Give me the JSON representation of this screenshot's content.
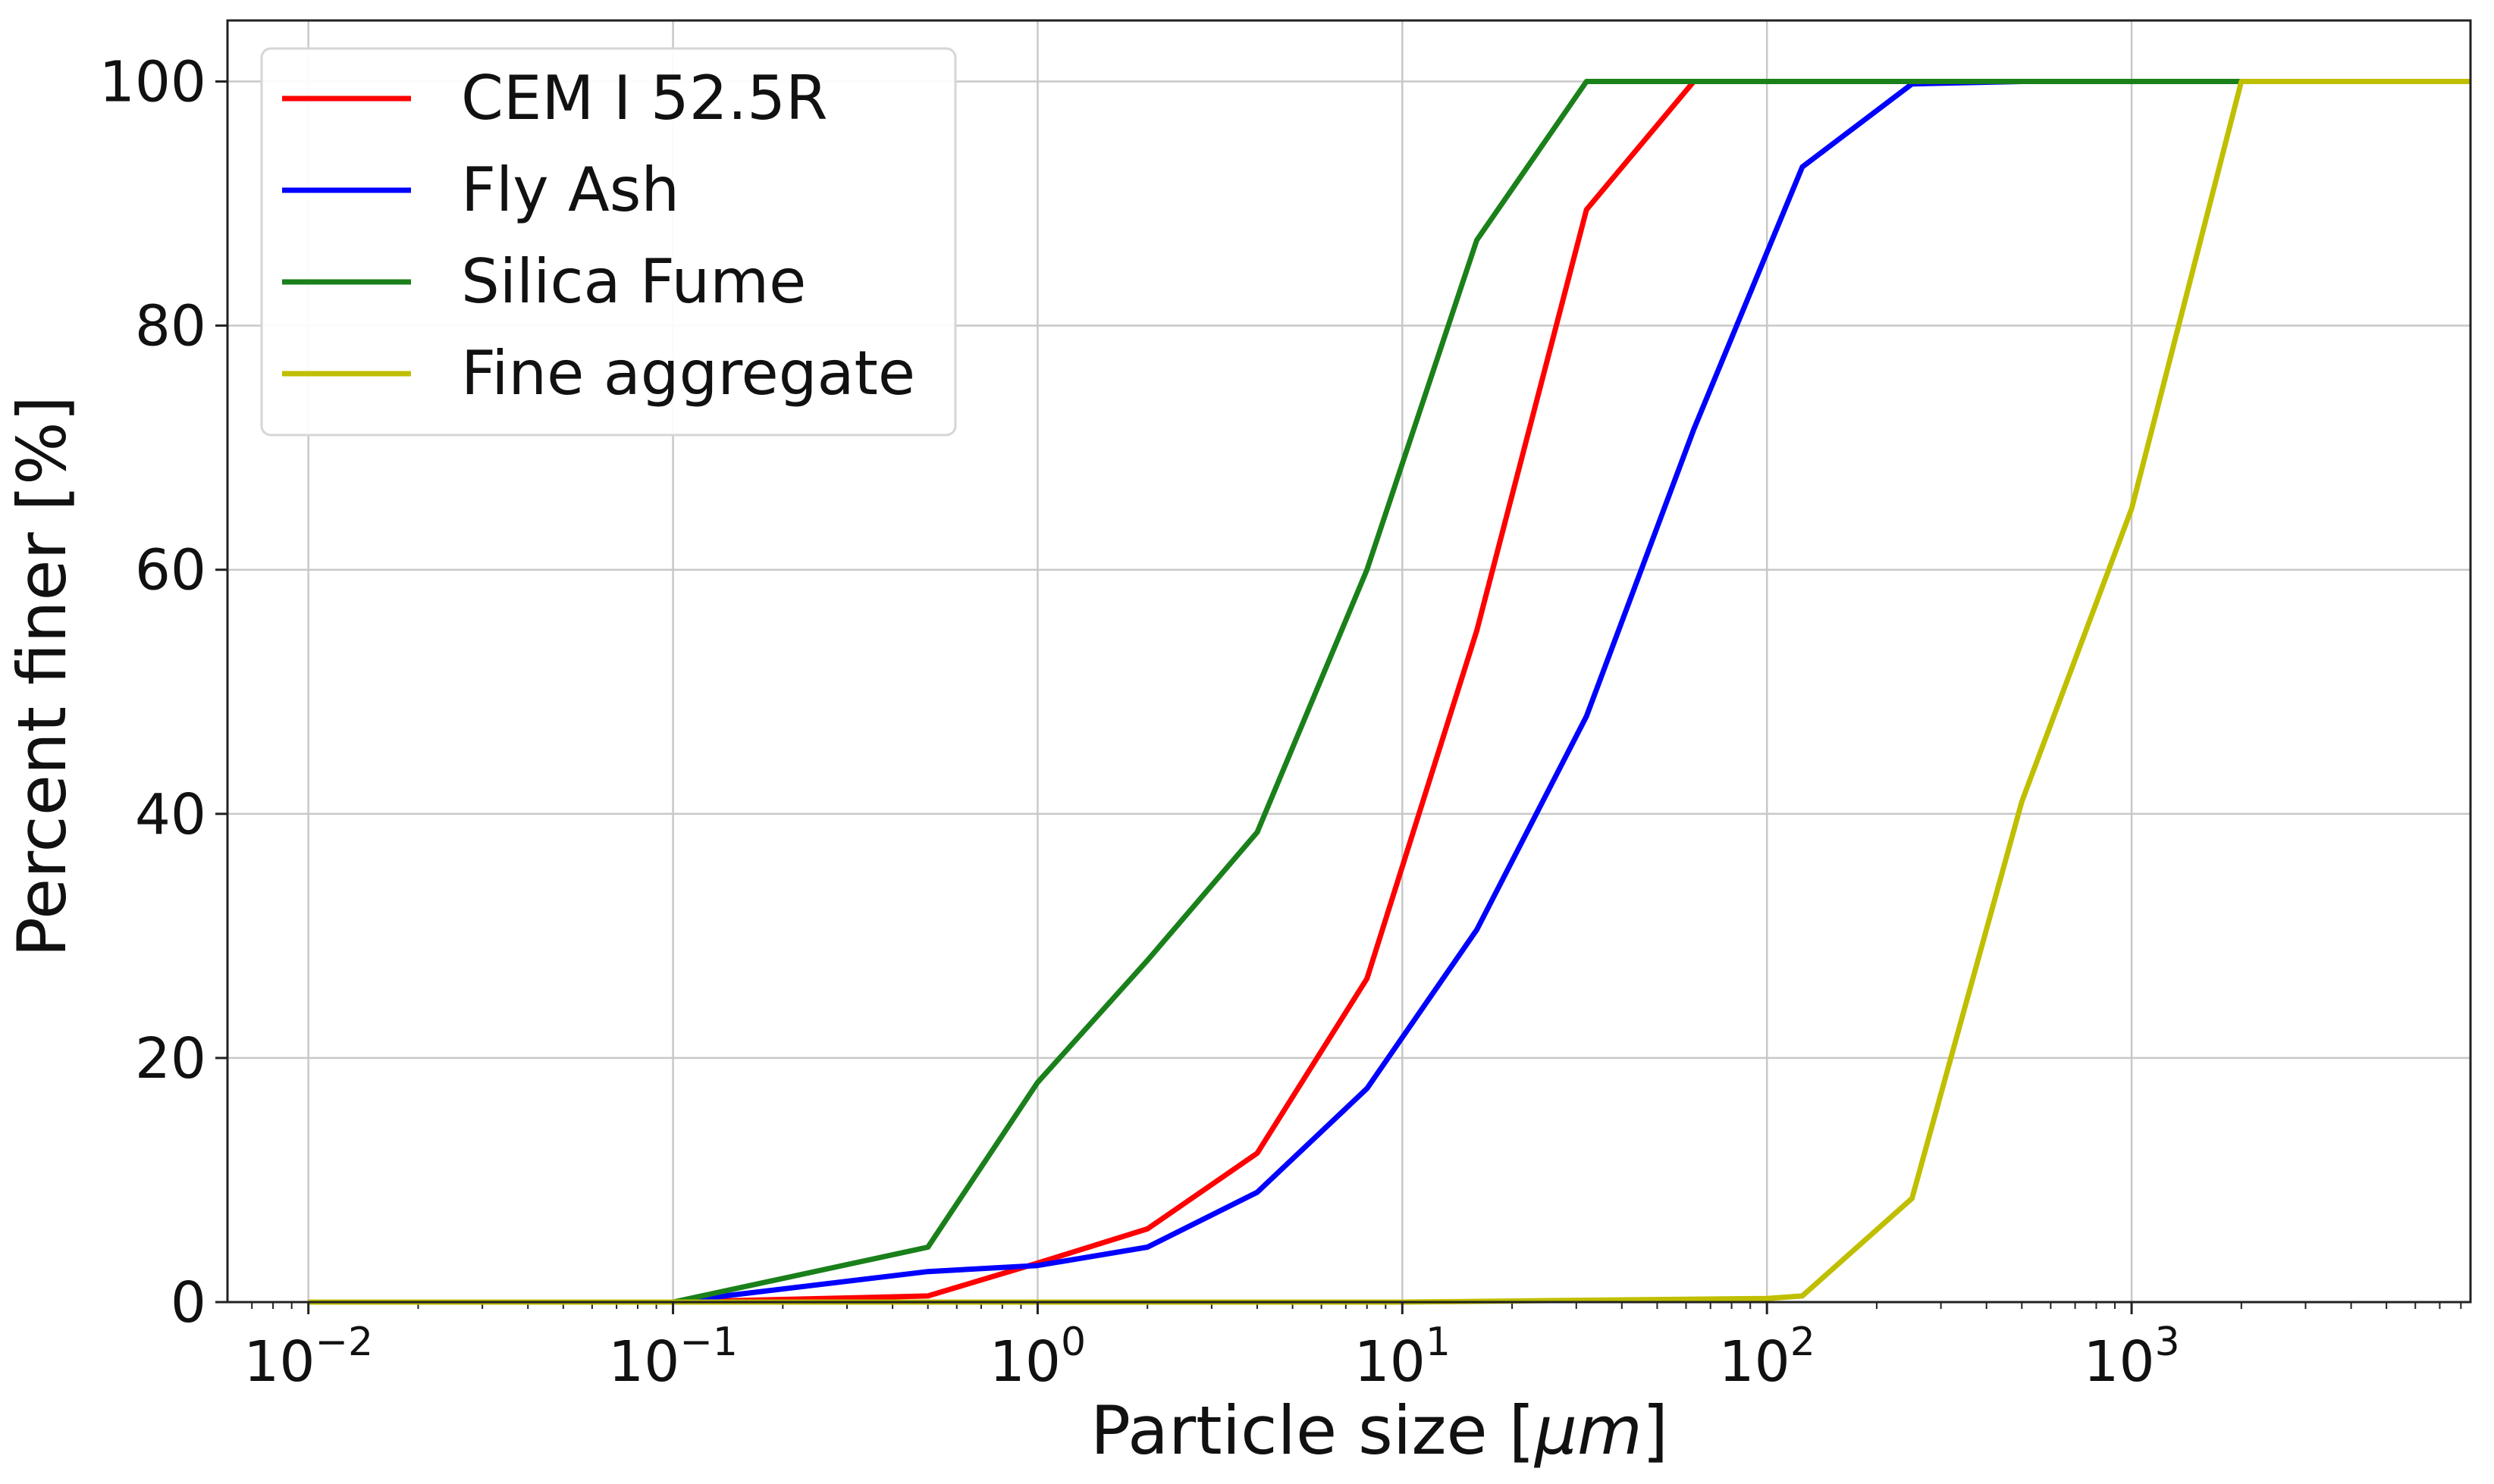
{
  "chart_data": {
    "type": "line",
    "title": "",
    "xlabel": "Particle size [μm]",
    "ylabel": "Percent finer [%]",
    "xscale": "log",
    "xlim": [
      0.006,
      8500
    ],
    "ylim": [
      0,
      105
    ],
    "grid": true,
    "legend_position": "upper left",
    "x_ticks": [
      {
        "value": 0.01,
        "base": "10",
        "exponent": "−2"
      },
      {
        "value": 0.1,
        "base": "10",
        "exponent": "−1"
      },
      {
        "value": 1,
        "base": "10",
        "exponent": "0"
      },
      {
        "value": 10,
        "base": "10",
        "exponent": "1"
      },
      {
        "value": 100,
        "base": "10",
        "exponent": "2"
      },
      {
        "value": 1000,
        "base": "10",
        "exponent": "3"
      }
    ],
    "y_ticks": [
      {
        "value": 0,
        "label": "0"
      },
      {
        "value": 20,
        "label": "20"
      },
      {
        "value": 40,
        "label": "40"
      },
      {
        "value": 60,
        "label": "60"
      },
      {
        "value": 80,
        "label": "80"
      },
      {
        "value": 100,
        "label": "100"
      }
    ],
    "series": [
      {
        "name": "CEM I 52.5R",
        "color": "#ff0000",
        "x": [
          0.01,
          0.1,
          0.5,
          1,
          2,
          4,
          8,
          16,
          32,
          63,
          125,
          250,
          500,
          1000,
          2000,
          8500
        ],
        "y": [
          0,
          0,
          0.5,
          3.2,
          6,
          12.2,
          26.5,
          55,
          89.5,
          100,
          100,
          100,
          100,
          100,
          100,
          100
        ]
      },
      {
        "name": "Fly Ash",
        "color": "#0000ff",
        "x": [
          0.1,
          0.5,
          1,
          2,
          4,
          8,
          16,
          32,
          63,
          125,
          250,
          500,
          1000,
          2000,
          8500
        ],
        "y": [
          0,
          2.5,
          3,
          4.5,
          9,
          17.5,
          30.5,
          48,
          71.5,
          93,
          99.8,
          100,
          100,
          100,
          100
        ]
      },
      {
        "name": "Silica Fume",
        "color": "#1a801a",
        "x": [
          0.01,
          0.1,
          0.5,
          1,
          2,
          4,
          8,
          16,
          32,
          63,
          125,
          250,
          500,
          1000,
          2000,
          8500
        ],
        "y": [
          0,
          0,
          4.5,
          18,
          28,
          38.5,
          60,
          87,
          100,
          100,
          100,
          100,
          100,
          100,
          100,
          100
        ]
      },
      {
        "name": "Fine aggregate",
        "color": "#bfbf00",
        "x": [
          0.01,
          0.1,
          1,
          10,
          100,
          125,
          250,
          500,
          1000,
          2000,
          8500
        ],
        "y": [
          0,
          0,
          0,
          0,
          0.3,
          0.5,
          8.5,
          41,
          65,
          100,
          100
        ]
      }
    ]
  }
}
